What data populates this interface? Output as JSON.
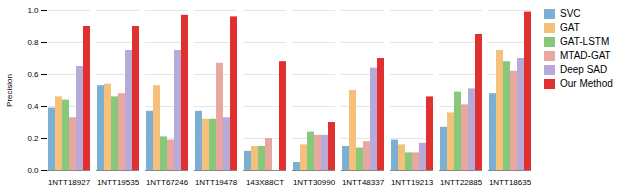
{
  "chart_data": {
    "type": "bar",
    "ylabel": "Precision",
    "categories": [
      "1NTT18927",
      "1NTT19535",
      "1NTT67246",
      "1NTT19478",
      "143X88CT",
      "1NTT30990",
      "1NTT48337",
      "1NTT19213",
      "1NTT22885",
      "1NTT18635"
    ],
    "series": [
      {
        "name": "SVC",
        "color": "#7bafd4",
        "values": [
          0.39,
          0.53,
          0.37,
          0.37,
          0.12,
          0.05,
          0.15,
          0.19,
          0.27,
          0.48
        ]
      },
      {
        "name": "GAT",
        "color": "#f5c07a",
        "values": [
          0.46,
          0.54,
          0.53,
          0.32,
          0.15,
          0.16,
          0.5,
          0.16,
          0.36,
          0.75
        ]
      },
      {
        "name": "GAT-LSTM",
        "color": "#88c87a",
        "values": [
          0.44,
          0.46,
          0.21,
          0.32,
          0.15,
          0.24,
          0.14,
          0.11,
          0.49,
          0.68
        ]
      },
      {
        "name": "MTAD-GAT",
        "color": "#e8a8a0",
        "values": [
          0.33,
          0.48,
          0.19,
          0.67,
          0.2,
          0.22,
          0.18,
          0.11,
          0.41,
          0.62
        ]
      },
      {
        "name": "Deep SAD",
        "color": "#b8aad8",
        "values": [
          0.65,
          0.75,
          0.75,
          0.33,
          0.0,
          0.22,
          0.64,
          0.17,
          0.51,
          0.7
        ]
      },
      {
        "name": "Our Method",
        "color": "#e03030",
        "values": [
          0.9,
          0.9,
          0.97,
          0.96,
          0.68,
          0.3,
          0.7,
          0.46,
          0.85,
          0.99
        ]
      }
    ],
    "ylim": [
      0.0,
      1.0
    ],
    "yticks": [
      {
        "value": 0.0,
        "label": "0.0"
      },
      0.2,
      0.4,
      0.6,
      0.8,
      {
        "value": 1.0,
        "label": "1.0"
      }
    ],
    "grid": true,
    "legend": "right"
  }
}
